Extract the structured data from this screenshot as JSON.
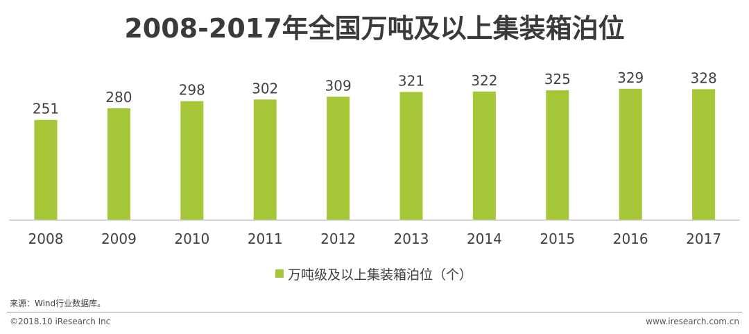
{
  "title": "2008-2017年全国万吨及以上集装箱泊位",
  "chart_data": {
    "type": "bar",
    "title": "2008-2017年全国万吨及以上集装箱泊位",
    "categories": [
      "2008",
      "2009",
      "2010",
      "2011",
      "2012",
      "2013",
      "2014",
      "2015",
      "2016",
      "2017"
    ],
    "series": [
      {
        "name": "万吨级及以上集装箱泊位（个）",
        "values": [
          251,
          280,
          298,
          302,
          309,
          321,
          322,
          325,
          329,
          328
        ]
      }
    ],
    "data_labels": [
      "251",
      "280",
      "298",
      "302",
      "309",
      "321",
      "322",
      "325",
      "329",
      "328"
    ],
    "xlabel": "",
    "ylabel": "",
    "ylim": [
      0,
      400
    ],
    "grid": false,
    "legend_position": "bottom",
    "bar_color": "#a6c838"
  },
  "legend": {
    "label": "万吨级及以上集装箱泊位（个）",
    "color": "#a6c838"
  },
  "source": "来源：Wind行业数据库。",
  "footer": {
    "copyright": "©2018.10 iResearch Inc",
    "website": "www.iresearch.com.cn"
  }
}
